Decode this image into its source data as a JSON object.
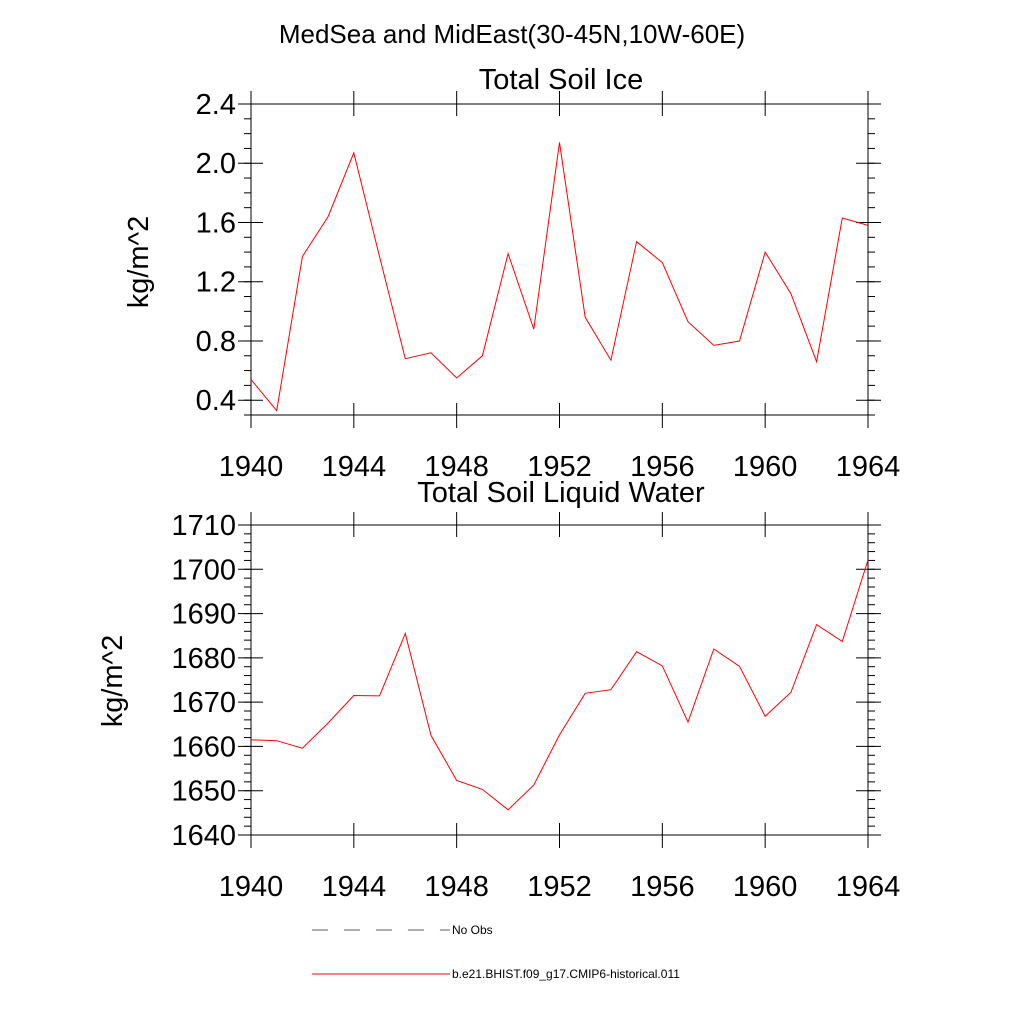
{
  "suptitle": "MedSea and MidEast(30-45N,10W-60E)",
  "legend": [
    {
      "label": "No Obs",
      "color": "#5a5a8a",
      "dash": true
    },
    {
      "label": "b.e21.BHIST.f09_g17.CMIP6-historical.011",
      "color": "#ff0000",
      "dash": false
    }
  ],
  "chart_data": [
    {
      "type": "line",
      "title": "Total Soil Ice",
      "ylabel": "kg/m^2",
      "xlim": [
        1940,
        1964
      ],
      "ylim": [
        0.3,
        2.4
      ],
      "xticks": [
        1940,
        1944,
        1948,
        1952,
        1956,
        1960,
        1964
      ],
      "yticks": [
        0.4,
        0.8,
        1.2,
        1.6,
        2.0,
        2.4
      ],
      "ytick_labels": [
        "0.4",
        "0.8",
        "1.2",
        "1.6",
        "2.0",
        "2.4"
      ],
      "yminor_step": 0.1,
      "grid": false,
      "series": [
        {
          "color": "#ff0000",
          "x": [
            1940,
            1941,
            1942,
            1943,
            1944,
            1945,
            1946,
            1947,
            1948,
            1949,
            1950,
            1951,
            1952,
            1953,
            1954,
            1955,
            1956,
            1957,
            1958,
            1959,
            1960,
            1961,
            1962,
            1963,
            1964
          ],
          "values": [
            0.54,
            0.33,
            1.37,
            1.64,
            2.07,
            1.37,
            0.68,
            0.72,
            0.55,
            0.7,
            1.39,
            0.88,
            2.14,
            0.96,
            0.67,
            1.47,
            1.33,
            0.93,
            0.77,
            0.8,
            1.4,
            1.12,
            0.66,
            1.63,
            1.58
          ]
        }
      ]
    },
    {
      "type": "line",
      "title": "Total Soil Liquid Water",
      "ylabel": "kg/m^2",
      "xlim": [
        1940,
        1964
      ],
      "ylim": [
        1640,
        1710
      ],
      "xticks": [
        1940,
        1944,
        1948,
        1952,
        1956,
        1960,
        1964
      ],
      "yticks": [
        1640,
        1650,
        1660,
        1670,
        1680,
        1690,
        1700,
        1710
      ],
      "ytick_labels": [
        "1640",
        "1650",
        "1660",
        "1670",
        "1680",
        "1690",
        "1700",
        "1710"
      ],
      "yminor_step": 2,
      "grid": false,
      "series": [
        {
          "color": "#ff0000",
          "x": [
            1940,
            1941,
            1942,
            1943,
            1944,
            1945,
            1946,
            1947,
            1948,
            1949,
            1950,
            1951,
            1952,
            1953,
            1954,
            1955,
            1956,
            1957,
            1958,
            1959,
            1960,
            1961,
            1962,
            1963,
            1964
          ],
          "values": [
            1661.5,
            1661.3,
            1659.6,
            1665.3,
            1671.5,
            1671.4,
            1685.5,
            1662.5,
            1652.3,
            1650.3,
            1645.7,
            1651.3,
            1662.6,
            1672,
            1672.8,
            1681.4,
            1678.2,
            1665.5,
            1682,
            1678.1,
            1666.8,
            1672.2,
            1687.5,
            1683.7,
            1702.1
          ]
        }
      ]
    }
  ]
}
